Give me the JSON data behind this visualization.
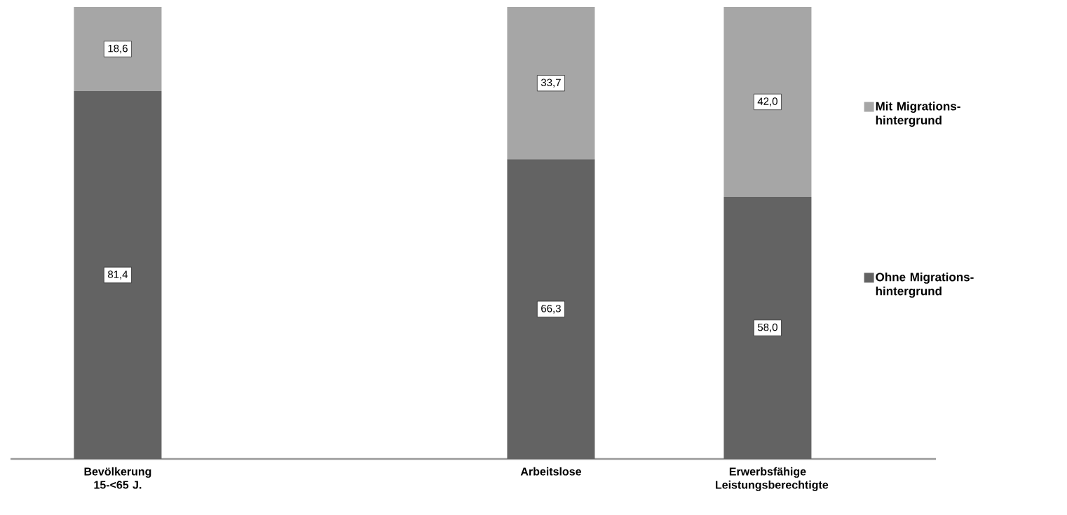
{
  "chart_data": {
    "type": "bar",
    "stacked": true,
    "categories": [
      "Bevölkerung 15-<65 J.",
      null,
      "Arbeitslose",
      "Erwerbsfähige Leistungsberechtigte"
    ],
    "series": [
      {
        "name": "Ohne Migrations- hintergrund",
        "color": "#636363",
        "values": [
          81.4,
          null,
          66.3,
          58.0
        ],
        "value_labels": [
          "81,4",
          null,
          "66,3",
          "58,0"
        ]
      },
      {
        "name": "Mit Migrations- hintergrund",
        "color": "#a6a6a6",
        "values": [
          18.6,
          null,
          33.7,
          42.0
        ],
        "value_labels": [
          "18,6",
          null,
          "33,7",
          "42,0"
        ]
      }
    ],
    "ylim": [
      0,
      100
    ],
    "tick_labels": "x",
    "legend": "right"
  }
}
